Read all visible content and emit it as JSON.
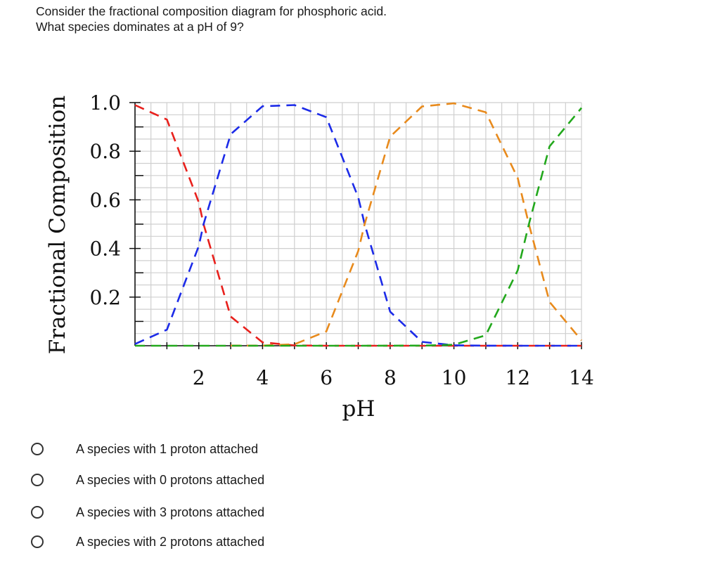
{
  "question": {
    "line1": "Consider the fractional composition diagram for phosphoric acid.",
    "line2": "What species dominates at a pH of 9?"
  },
  "chart_data": {
    "type": "line",
    "xlabel": "pH",
    "ylabel": "Fractional Composition",
    "xlim": [
      0,
      14
    ],
    "ylim": [
      0,
      1
    ],
    "x_ticks": [
      2,
      4,
      6,
      8,
      10,
      12,
      14
    ],
    "y_ticks": [
      0.2,
      0.4,
      0.6,
      0.8,
      1.0
    ],
    "y_tick_labels": [
      "0.2",
      "0.4",
      "0.6",
      "0.8",
      "1.0"
    ],
    "grid": true,
    "pKa": [
      2.15,
      7.2,
      12.35
    ],
    "series": [
      {
        "color": "#e8201c",
        "dash": "dashed",
        "x": [
          0,
          1,
          2,
          2.15,
          3,
          4,
          5,
          6,
          8,
          14
        ],
        "values": [
          0.99,
          0.93,
          0.59,
          0.5,
          0.12,
          0.014,
          0.0014,
          0.0001,
          0,
          0
        ]
      },
      {
        "color": "#1c2be8",
        "dash": "dashed",
        "x": [
          0,
          1,
          2,
          2.15,
          3,
          4,
          5,
          6,
          7,
          7.2,
          8,
          9,
          10,
          11,
          12,
          14
        ],
        "values": [
          0.007,
          0.066,
          0.41,
          0.5,
          0.87,
          0.985,
          0.99,
          0.94,
          0.61,
          0.5,
          0.14,
          0.016,
          0.0016,
          0.0002,
          0,
          0
        ]
      },
      {
        "color": "#e88a1c",
        "dash": "dashed",
        "x": [
          3,
          4,
          5,
          6,
          7,
          7.2,
          8,
          9,
          10,
          11,
          12,
          12.35,
          13,
          14
        ],
        "values": [
          0.0007,
          0.0006,
          0.006,
          0.059,
          0.39,
          0.5,
          0.86,
          0.984,
          0.997,
          0.96,
          0.69,
          0.5,
          0.18,
          0.022
        ]
      },
      {
        "color": "#22a81c",
        "dash": "dashed",
        "x": [
          0,
          7,
          8,
          9,
          10,
          11,
          12,
          12.35,
          13,
          14
        ],
        "values": [
          0,
          0,
          0.0004,
          0.0006,
          0.004,
          0.043,
          0.31,
          0.5,
          0.82,
          0.978
        ]
      }
    ]
  },
  "options": [
    {
      "label": "A species with 1 proton  attached"
    },
    {
      "label": "A species with 0 protons attached"
    },
    {
      "label": "A species with 3 protons attached"
    },
    {
      "label": "A species with 2 protons attached"
    }
  ]
}
